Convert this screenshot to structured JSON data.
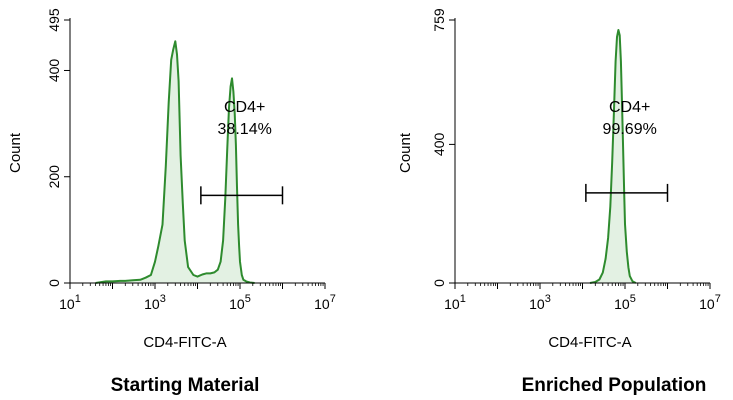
{
  "chart_data": [
    {
      "type": "area",
      "title": "Starting Material",
      "xlabel": "CD4-FITC-A",
      "ylabel": "Count",
      "x_scale": "log10",
      "xlim": [
        10,
        10000000
      ],
      "ylim": [
        0,
        495
      ],
      "x_ticks": [
        {
          "base": "10",
          "exp": "1"
        },
        {
          "base": "10",
          "exp": "3"
        },
        {
          "base": "10",
          "exp": "5"
        },
        {
          "base": "10",
          "exp": "7"
        }
      ],
      "y_ticks": [
        "0",
        "200",
        "400",
        "495"
      ],
      "colors": {
        "line": "#2e8b2e",
        "fill": "#e3f1e3"
      },
      "series": [
        {
          "x": [
            40,
            70,
            100,
            150,
            200,
            300,
            450,
            600,
            800,
            1000,
            1200,
            1500,
            1800,
            2100,
            2400,
            2700,
            3000,
            3300,
            3600,
            4000,
            4500,
            5000,
            6000,
            8000,
            10000,
            13000,
            16000,
            20000,
            25000,
            30000,
            35000,
            40000,
            45000,
            50000,
            55000,
            60000,
            65000,
            70000,
            75000,
            80000,
            85000,
            90000,
            95000,
            100000,
            110000,
            120000,
            140000,
            170000,
            220000
          ],
          "y": [
            0,
            3,
            3,
            4,
            4,
            5,
            6,
            10,
            15,
            40,
            70,
            110,
            220,
            340,
            420,
            440,
            455,
            430,
            380,
            240,
            150,
            80,
            30,
            15,
            12,
            16,
            18,
            18,
            20,
            25,
            40,
            80,
            160,
            250,
            330,
            370,
            385,
            360,
            320,
            260,
            180,
            110,
            70,
            40,
            15,
            6,
            3,
            1,
            0
          ]
        }
      ],
      "gate": {
        "label": "CD4+",
        "percent": "38.14%",
        "range": [
          12000,
          1000000
        ],
        "count_level": 165
      }
    },
    {
      "type": "area",
      "title": "Enriched Population",
      "xlabel": "CD4-FITC-A",
      "ylabel": "Count",
      "x_scale": "log10",
      "xlim": [
        10,
        10000000
      ],
      "ylim": [
        0,
        759
      ],
      "x_ticks": [
        {
          "base": "10",
          "exp": "1"
        },
        {
          "base": "10",
          "exp": "3"
        },
        {
          "base": "10",
          "exp": "5"
        },
        {
          "base": "10",
          "exp": "7"
        }
      ],
      "y_ticks": [
        "0",
        "400",
        "759"
      ],
      "colors": {
        "line": "#2e8b2e",
        "fill": "#e3f1e3"
      },
      "series": [
        {
          "x": [
            15000,
            20000,
            25000,
            30000,
            35000,
            40000,
            45000,
            50000,
            55000,
            60000,
            65000,
            70000,
            75000,
            80000,
            85000,
            90000,
            95000,
            100000,
            110000,
            120000,
            130000,
            150000,
            180000
          ],
          "y": [
            0,
            3,
            10,
            30,
            70,
            130,
            220,
            350,
            500,
            640,
            710,
            730,
            715,
            640,
            520,
            390,
            270,
            170,
            90,
            45,
            20,
            5,
            0
          ]
        }
      ],
      "gate": {
        "label": "CD4+",
        "percent": "99.69%",
        "range": [
          12000,
          1000000
        ],
        "count_level": 260
      }
    }
  ]
}
